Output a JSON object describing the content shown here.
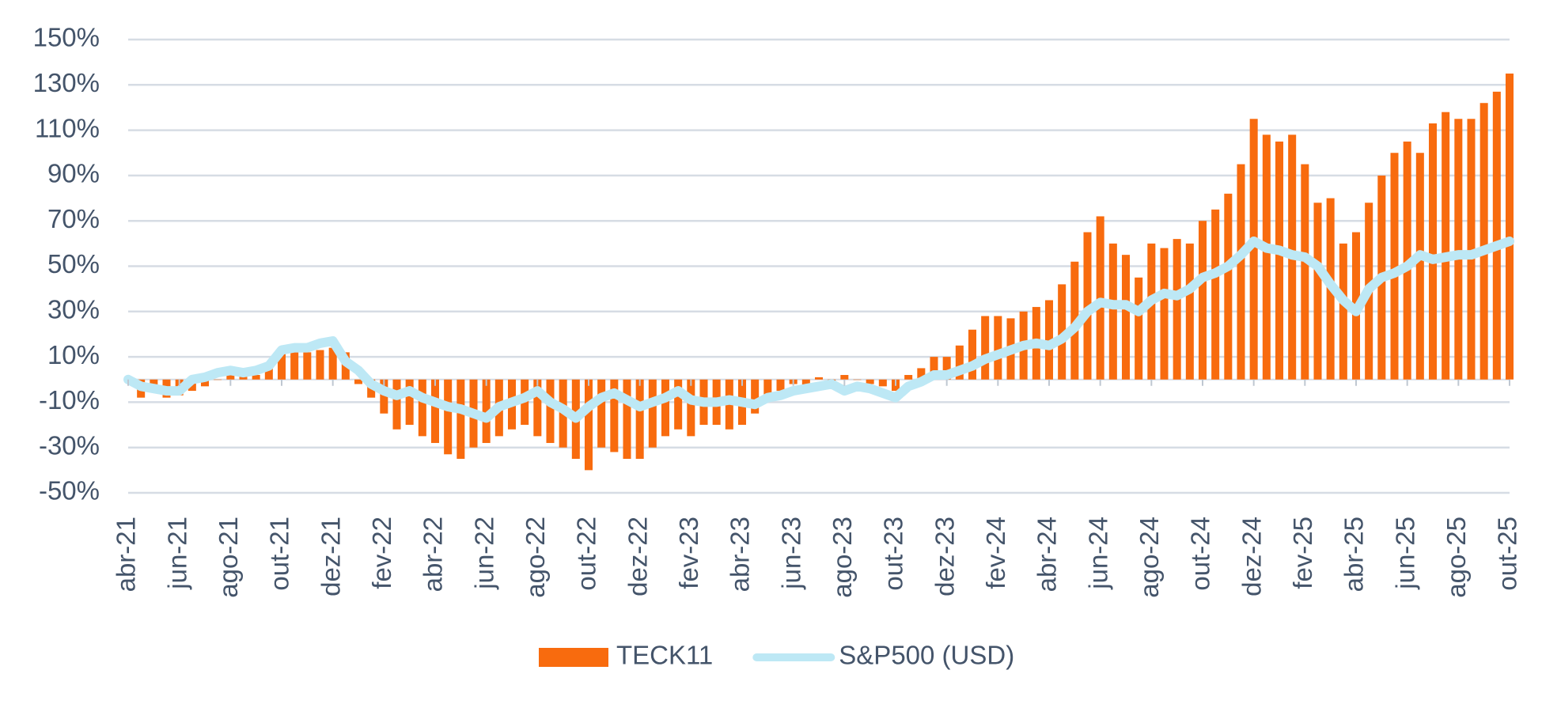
{
  "chart_data": {
    "type": "bar_line",
    "categories": [
      "abr-21",
      null,
      null,
      null,
      "jun-21",
      null,
      null,
      null,
      "ago-21",
      null,
      null,
      null,
      "out-21",
      null,
      null,
      null,
      "dez-21",
      null,
      null,
      null,
      "fev-22",
      null,
      null,
      null,
      "abr-22",
      null,
      null,
      null,
      "jun-22",
      null,
      null,
      null,
      "ago-22",
      null,
      null,
      null,
      "out-22",
      null,
      null,
      null,
      "dez-22",
      null,
      null,
      null,
      "fev-23",
      null,
      null,
      null,
      "abr-23",
      null,
      null,
      null,
      "jun-23",
      null,
      null,
      null,
      "ago-23",
      null,
      null,
      null,
      "out-23",
      null,
      null,
      null,
      "dez-23",
      null,
      null,
      null,
      "fev-24",
      null,
      null,
      null,
      "abr-24",
      null,
      null,
      null,
      "jun-24",
      null,
      null,
      null,
      "ago-24",
      null,
      null,
      null,
      "out-24",
      null,
      null,
      null,
      "dez-24",
      null,
      null,
      null,
      "fev-25",
      null,
      null,
      null,
      "abr-25",
      null,
      null,
      null,
      "jun-25",
      null,
      null,
      null,
      "ago-25",
      null,
      null,
      null,
      "out-25"
    ],
    "series": [
      {
        "name": "TECK11",
        "type": "bar",
        "color": "#f86b0e",
        "values": [
          0,
          -8,
          -5,
          -8,
          -7,
          -5,
          -3,
          0,
          2,
          3,
          2,
          5,
          12,
          15,
          12,
          13,
          14,
          12,
          -2,
          -8,
          -15,
          -22,
          -20,
          -25,
          -28,
          -33,
          -35,
          -30,
          -28,
          -25,
          -22,
          -20,
          -25,
          -28,
          -30,
          -35,
          -40,
          -30,
          -32,
          -35,
          -35,
          -30,
          -25,
          -22,
          -25,
          -20,
          -20,
          -22,
          -20,
          -15,
          -8,
          -5,
          -2,
          -3,
          1,
          -2,
          2,
          0,
          -2,
          -3,
          -5,
          2,
          5,
          10,
          10,
          15,
          22,
          28,
          28,
          27,
          30,
          32,
          35,
          42,
          52,
          65,
          72,
          60,
          55,
          45,
          60,
          58,
          62,
          60,
          70,
          75,
          82,
          95,
          115,
          108,
          105,
          108,
          95,
          78,
          80,
          60,
          65,
          78,
          90,
          100,
          105,
          100,
          113,
          118,
          115,
          115,
          122,
          127,
          135
        ]
      },
      {
        "name": "S&P500 (USD)",
        "type": "line",
        "color": "#bde8f5",
        "values": [
          0,
          -3,
          -4,
          -5,
          -5,
          0,
          1,
          3,
          4,
          3,
          4,
          6,
          13,
          14,
          14,
          16,
          17,
          8,
          4,
          -2,
          -5,
          -7,
          -5,
          -8,
          -10,
          -12,
          -13,
          -15,
          -17,
          -12,
          -10,
          -8,
          -5,
          -10,
          -13,
          -17,
          -12,
          -8,
          -6,
          -9,
          -12,
          -10,
          -8,
          -5,
          -9,
          -10,
          -10,
          -9,
          -10,
          -11,
          -8,
          -7,
          -5,
          -4,
          -3,
          -2,
          -5,
          -3,
          -4,
          -6,
          -8,
          -3,
          -1,
          2,
          2,
          4,
          6,
          9,
          11,
          13,
          15,
          16,
          15,
          18,
          23,
          30,
          34,
          33,
          33,
          30,
          35,
          38,
          37,
          40,
          45,
          47,
          50,
          55,
          61,
          58,
          57,
          55,
          54,
          50,
          42,
          35,
          30,
          40,
          45,
          47,
          50,
          55,
          53,
          54,
          55,
          55,
          57,
          59,
          61
        ]
      }
    ],
    "ylim": [
      -50,
      150
    ],
    "yticks": [
      {
        "value": -50,
        "label": "-50%"
      },
      {
        "value": -30,
        "label": "-30%"
      },
      {
        "value": -10,
        "label": "-10%"
      },
      {
        "value": 10,
        "label": "10%"
      },
      {
        "value": 30,
        "label": "30%"
      },
      {
        "value": 50,
        "label": "50%"
      },
      {
        "value": 70,
        "label": "70%"
      },
      {
        "value": 90,
        "label": "90%"
      },
      {
        "value": 110,
        "label": "110%"
      },
      {
        "value": 130,
        "label": "130%"
      },
      {
        "value": 150,
        "label": "150%"
      }
    ],
    "grid": true,
    "legend": "bottom"
  }
}
